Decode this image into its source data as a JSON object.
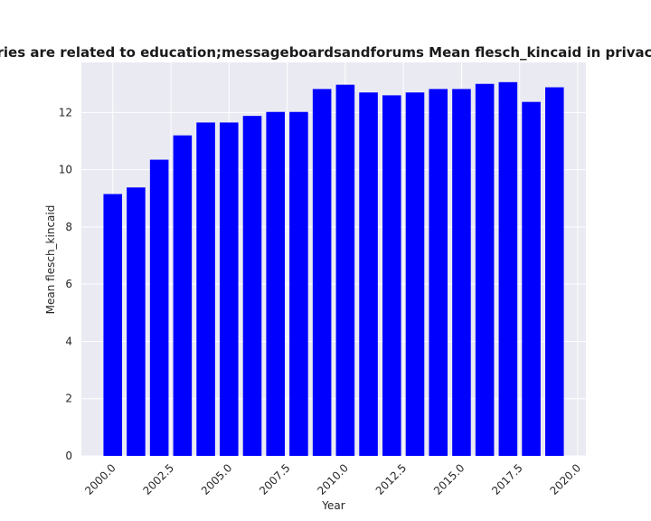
{
  "chart_data": {
    "type": "bar",
    "title": "Categories are related to education;messageboardsandforums Mean flesch_kincaid in privacy policies",
    "xlabel": "Year",
    "ylabel": "Mean flesch_kincaid",
    "x": [
      2000,
      2001,
      2002,
      2003,
      2004,
      2005,
      2006,
      2007,
      2008,
      2009,
      2010,
      2011,
      2012,
      2013,
      2014,
      2015,
      2016,
      2017,
      2018,
      2019
    ],
    "values": [
      9.15,
      9.38,
      10.35,
      11.2,
      11.65,
      11.65,
      11.88,
      12.02,
      12.02,
      12.82,
      12.97,
      12.7,
      12.6,
      12.7,
      12.82,
      12.82,
      13.0,
      13.06,
      12.37,
      12.88
    ],
    "xlim": [
      1998.65,
      2020.35
    ],
    "ylim": [
      0,
      13.75
    ],
    "xticks": [
      "2000.0",
      "2002.5",
      "2005.0",
      "2007.5",
      "2010.0",
      "2012.5",
      "2015.0",
      "2017.5",
      "2020.0"
    ],
    "xtick_values": [
      2000,
      2002.5,
      2005,
      2007.5,
      2010,
      2012.5,
      2015,
      2017.5,
      2020
    ],
    "yticks": [
      "0",
      "2",
      "4",
      "6",
      "8",
      "10",
      "12"
    ],
    "ytick_values": [
      0,
      2,
      4,
      6,
      8,
      10,
      12
    ],
    "grid": true,
    "bar_color": "#0000ff",
    "background_color": "#eaeaf2",
    "grid_color": "#ffffff"
  }
}
